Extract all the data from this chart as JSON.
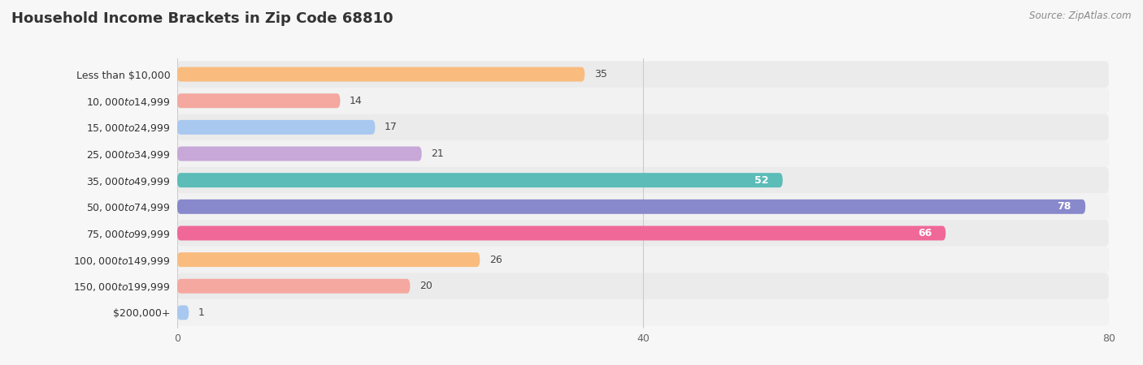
{
  "title": "Household Income Brackets in Zip Code 68810",
  "source": "Source: ZipAtlas.com",
  "categories": [
    "Less than $10,000",
    "$10,000 to $14,999",
    "$15,000 to $24,999",
    "$25,000 to $34,999",
    "$35,000 to $49,999",
    "$50,000 to $74,999",
    "$75,000 to $99,999",
    "$100,000 to $149,999",
    "$150,000 to $199,999",
    "$200,000+"
  ],
  "values": [
    35,
    14,
    17,
    21,
    52,
    78,
    66,
    26,
    20,
    1
  ],
  "bar_colors": [
    "#F9BC7E",
    "#F4A8A0",
    "#A8C8F0",
    "#C8A8D8",
    "#5BBCB8",
    "#8888CC",
    "#F06898",
    "#F9BC7E",
    "#F4A8A0",
    "#A8C8F0"
  ],
  "value_inside": [
    false,
    false,
    false,
    false,
    true,
    true,
    true,
    false,
    false,
    false
  ],
  "xlim": [
    0,
    80
  ],
  "xticks": [
    0,
    40,
    80
  ],
  "background_color": "#f7f7f7",
  "bar_background": "#e8e8e8",
  "row_background_odd": "#ebebeb",
  "row_background_even": "#f2f2f2",
  "title_fontsize": 13,
  "label_fontsize": 9,
  "value_fontsize": 9,
  "bar_height": 0.55,
  "rounding_size": 0.28
}
